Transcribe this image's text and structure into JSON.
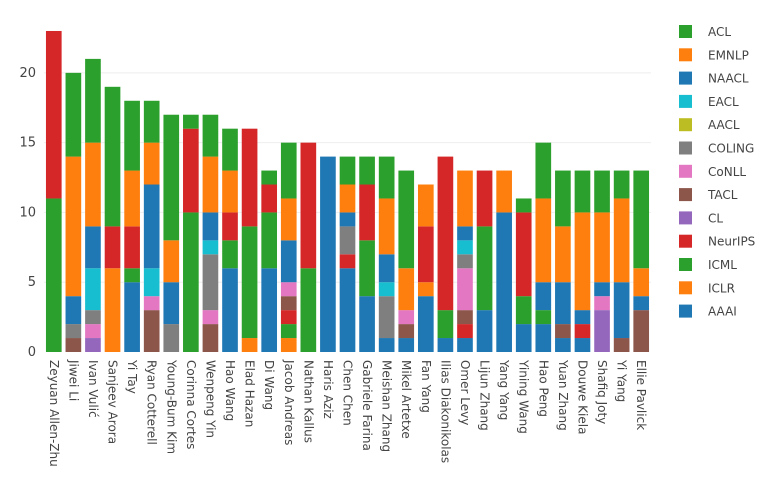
{
  "chart_data": {
    "type": "bar",
    "stacked": true,
    "ylim": [
      0,
      23.5
    ],
    "yticks": [
      0,
      5,
      10,
      15,
      20
    ],
    "grid": true,
    "legend_position": "right",
    "stack_order": [
      "AAAI",
      "ICLR",
      "ICML",
      "NeurIPS",
      "CL",
      "TACL",
      "CoNLL",
      "COLING",
      "AACL",
      "EACL",
      "NAACL",
      "EMNLP",
      "ACL"
    ],
    "legend_order": [
      "ACL",
      "EMNLP",
      "NAACL",
      "EACL",
      "AACL",
      "COLING",
      "CoNLL",
      "TACL",
      "CL",
      "NeurIPS",
      "ICML",
      "ICLR",
      "AAAI"
    ],
    "colors": {
      "ACL": "#2ca02c",
      "EMNLP": "#ff7f0e",
      "NAACL": "#1f77b4",
      "EACL": "#17becf",
      "AACL": "#bcbd22",
      "COLING": "#7f7f7f",
      "CoNLL": "#e377c2",
      "TACL": "#8c564b",
      "CL": "#9467bd",
      "NeurIPS": "#d62728",
      "ICML": "#2ca02c",
      "ICLR": "#ff7f0e",
      "AAAI": "#1f77b4"
    },
    "categories": [
      "Zeyuan Allen-Zhu",
      "Jiwei Li",
      "Ivan Vulić",
      "Sanjeev Arora",
      "Yi Tay",
      "Ryan Cotterell",
      "Young-Bum Kim",
      "Corinna Cortes",
      "Wenpeng Yin",
      "Hao Wang",
      "Elad Hazan",
      "Di Wang",
      "Jacob Andreas",
      "Nathan Kallus",
      "Haris Aziz",
      "Chen Chen",
      "Gabriele Farina",
      "Meishan Zhang",
      "Mikel Artetxe",
      "Fan Yang",
      "Ilias Diakonikolas",
      "Omer Levy",
      "Lijun Zhang",
      "Yang Yang",
      "Yining Wang",
      "Hao Peng",
      "Yuan Zhang",
      "Douwe Kiela",
      "Shafiq Joty",
      "Yi Yang",
      "Ellie Pavlick"
    ],
    "series": [
      {
        "name": "AAAI",
        "values": [
          0,
          0,
          0,
          0,
          5,
          0,
          0,
          0,
          0,
          6,
          0,
          6,
          0,
          0,
          14,
          6,
          4,
          1,
          1,
          4,
          1,
          1,
          3,
          10,
          2,
          2,
          1,
          1,
          0,
          0,
          0
        ]
      },
      {
        "name": "ICLR",
        "values": [
          0,
          0,
          0,
          6,
          0,
          0,
          0,
          0,
          0,
          0,
          1,
          0,
          1,
          0,
          0,
          0,
          0,
          0,
          0,
          1,
          0,
          0,
          0,
          0,
          0,
          0,
          0,
          0,
          0,
          0,
          0
        ]
      },
      {
        "name": "ICML",
        "values": [
          11,
          0,
          0,
          0,
          1,
          0,
          0,
          10,
          0,
          2,
          8,
          4,
          1,
          6,
          0,
          0,
          4,
          0,
          0,
          0,
          2,
          0,
          6,
          0,
          2,
          1,
          0,
          0,
          0,
          0,
          0
        ]
      },
      {
        "name": "NeurIPS",
        "values": [
          12,
          0,
          0,
          3,
          3,
          0,
          0,
          6,
          0,
          2,
          7,
          2,
          1,
          9,
          0,
          1,
          4,
          0,
          0,
          4,
          11,
          1,
          4,
          0,
          6,
          0,
          0,
          1,
          0,
          0,
          0
        ]
      },
      {
        "name": "CL",
        "values": [
          0,
          0,
          1,
          0,
          0,
          0,
          0,
          0,
          0,
          0,
          0,
          0,
          0,
          0,
          0,
          0,
          0,
          0,
          0,
          0,
          0,
          0,
          0,
          0,
          0,
          0,
          0,
          0,
          3,
          0,
          0
        ]
      },
      {
        "name": "TACL",
        "values": [
          0,
          1,
          0,
          0,
          0,
          3,
          0,
          0,
          2,
          0,
          0,
          0,
          1,
          0,
          0,
          0,
          0,
          0,
          1,
          0,
          0,
          1,
          0,
          0,
          0,
          0,
          1,
          0,
          0,
          1,
          3
        ]
      },
      {
        "name": "CoNLL",
        "values": [
          0,
          0,
          1,
          0,
          0,
          1,
          0,
          0,
          1,
          0,
          0,
          0,
          1,
          0,
          0,
          0,
          0,
          0,
          1,
          0,
          0,
          3,
          0,
          0,
          0,
          0,
          0,
          0,
          1,
          0,
          0
        ]
      },
      {
        "name": "COLING",
        "values": [
          0,
          1,
          1,
          0,
          0,
          0,
          2,
          0,
          4,
          0,
          0,
          0,
          0,
          0,
          0,
          2,
          0,
          3,
          0,
          0,
          0,
          1,
          0,
          0,
          0,
          0,
          0,
          0,
          0,
          0,
          0
        ]
      },
      {
        "name": "AACL",
        "values": [
          0,
          0,
          0,
          0,
          0,
          0,
          0,
          0,
          0,
          0,
          0,
          0,
          0,
          0,
          0,
          0,
          0,
          0,
          0,
          0,
          0,
          0,
          0,
          0,
          0,
          0,
          0,
          0,
          0,
          0,
          0
        ]
      },
      {
        "name": "EACL",
        "values": [
          0,
          0,
          3,
          0,
          0,
          2,
          0,
          0,
          1,
          0,
          0,
          0,
          0,
          0,
          0,
          0,
          0,
          1,
          0,
          0,
          0,
          1,
          0,
          0,
          0,
          0,
          0,
          0,
          0,
          0,
          0
        ]
      },
      {
        "name": "NAACL",
        "values": [
          0,
          2,
          3,
          0,
          0,
          6,
          3,
          0,
          2,
          0,
          0,
          0,
          3,
          0,
          0,
          1,
          0,
          2,
          0,
          0,
          0,
          1,
          0,
          0,
          0,
          2,
          3,
          1,
          1,
          4,
          1
        ]
      },
      {
        "name": "EMNLP",
        "values": [
          0,
          10,
          6,
          0,
          4,
          3,
          3,
          0,
          4,
          3,
          0,
          0,
          3,
          0,
          0,
          2,
          0,
          4,
          3,
          3,
          0,
          4,
          0,
          3,
          0,
          6,
          4,
          7,
          5,
          6,
          2
        ]
      },
      {
        "name": "ACL",
        "values": [
          0,
          6,
          6,
          10,
          5,
          3,
          9,
          1,
          3,
          3,
          0,
          1,
          4,
          0,
          0,
          2,
          2,
          3,
          7,
          0,
          0,
          0,
          0,
          0,
          1,
          4,
          4,
          3,
          3,
          2,
          7
        ]
      }
    ]
  }
}
